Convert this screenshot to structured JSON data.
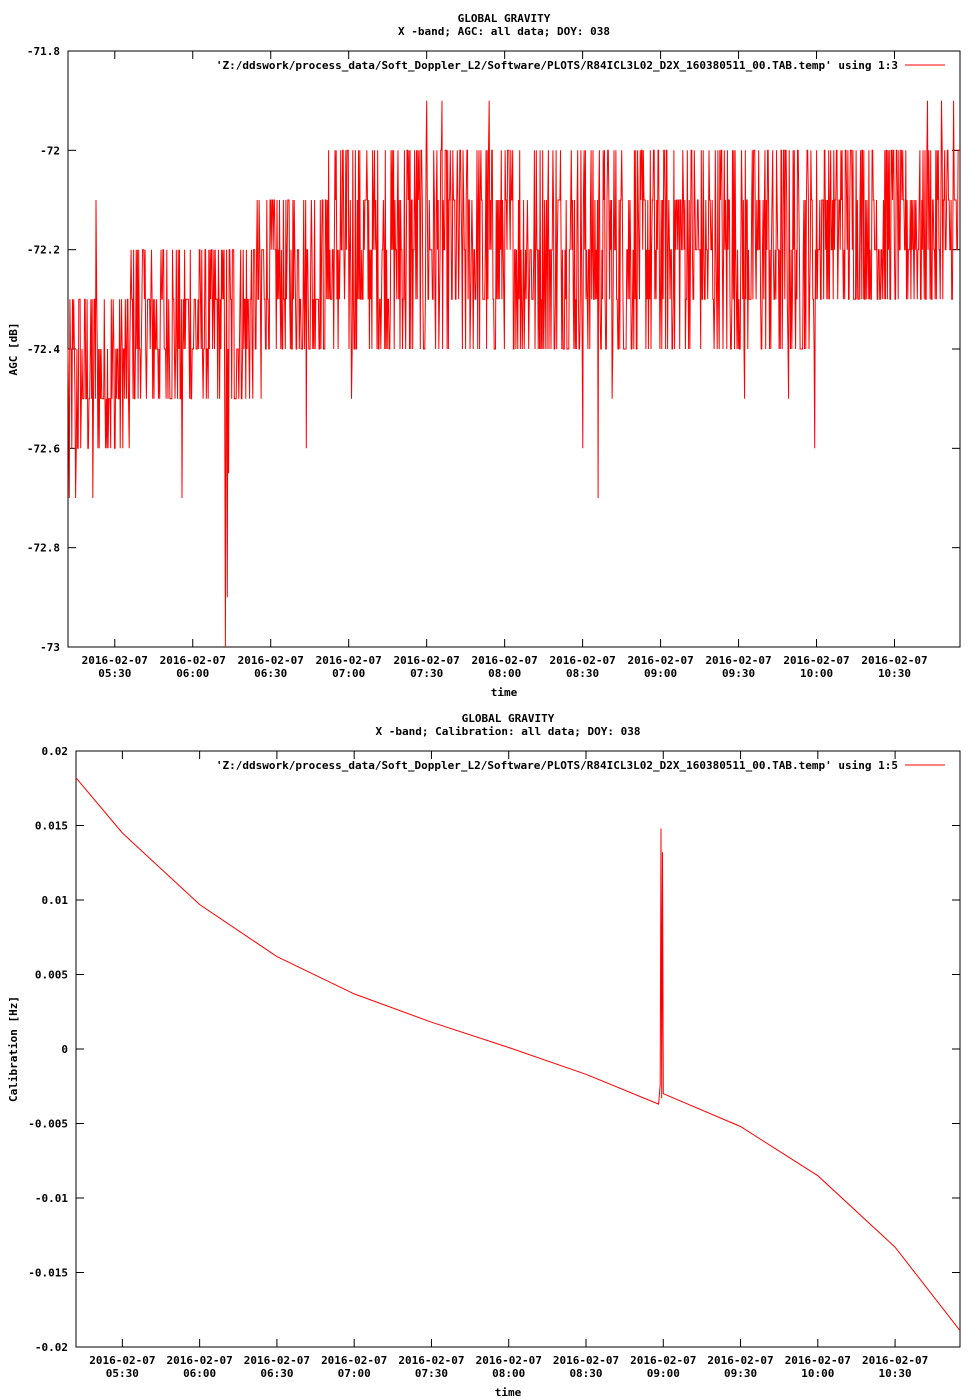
{
  "chart_data": [
    {
      "type": "line",
      "title": "GLOBAL GRAVITY",
      "subtitle": "X -band; AGC: all data; DOY: 038",
      "xlabel": "time",
      "ylabel": "AGC [dB]",
      "legend": "'Z:/ddswork/process_data/Soft_Doppler_L2/Software/PLOTS/R84ICL3L02_D2X_160380511_00.TAB.temp' using 1:3",
      "legend_position": "top-right",
      "color": "#ff0000",
      "xlim_hours": [
        5.2,
        10.92
      ],
      "ylim": [
        -73,
        -71.8
      ],
      "yticks": [
        -71.8,
        -72,
        -72.2,
        -72.4,
        -72.6,
        -72.8,
        -73
      ],
      "ytick_labels": [
        "-71.8",
        "-72",
        "-72.2",
        "-72.4",
        "-72.6",
        "-72.8",
        "-73"
      ],
      "xticks_hours": [
        5.5,
        6.0,
        6.5,
        7.0,
        7.5,
        8.0,
        8.5,
        9.0,
        9.5,
        10.0,
        10.5
      ],
      "xtick_dates": [
        "2016-02-07",
        "2016-02-07",
        "2016-02-07",
        "2016-02-07",
        "2016-02-07",
        "2016-02-07",
        "2016-02-07",
        "2016-02-07",
        "2016-02-07",
        "2016-02-07",
        "2016-02-07"
      ],
      "xtick_times": [
        "05:30",
        "06:00",
        "06:30",
        "07:00",
        "07:30",
        "08:00",
        "08:30",
        "09:00",
        "09:30",
        "10:00",
        "10:30"
      ],
      "segments": [
        {
          "x": [
            5.2,
            5.6
          ],
          "min": -72.6,
          "max": -72.3
        },
        {
          "x": [
            5.6,
            6.4
          ],
          "min": -72.5,
          "max": -72.2
        },
        {
          "x": [
            6.4,
            6.9
          ],
          "min": -72.4,
          "max": -72.1
        },
        {
          "x": [
            6.9,
            10.0
          ],
          "min": -72.4,
          "max": -72.0
        },
        {
          "x": [
            10.0,
            10.92
          ],
          "min": -72.3,
          "max": -72.0
        }
      ],
      "spikes": [
        {
          "x": 5.21,
          "y": -72.7
        },
        {
          "x": 5.25,
          "y": -72.7
        },
        {
          "x": 5.36,
          "y": -72.7
        },
        {
          "x": 5.38,
          "y": -72.1
        },
        {
          "x": 5.33,
          "y": -72.6
        },
        {
          "x": 5.45,
          "y": -72.6
        },
        {
          "x": 5.93,
          "y": -72.7
        },
        {
          "x": 6.21,
          "y": -73.0
        },
        {
          "x": 6.22,
          "y": -72.9
        },
        {
          "x": 6.23,
          "y": -72.65
        },
        {
          "x": 5.5,
          "y": -72.6
        },
        {
          "x": 6.44,
          "y": -72.5
        },
        {
          "x": 6.73,
          "y": -72.6
        },
        {
          "x": 6.87,
          "y": -72.0
        },
        {
          "x": 7.02,
          "y": -72.5
        },
        {
          "x": 7.5,
          "y": -71.9
        },
        {
          "x": 7.6,
          "y": -71.9
        },
        {
          "x": 7.9,
          "y": -71.9
        },
        {
          "x": 8.5,
          "y": -72.6
        },
        {
          "x": 8.6,
          "y": -72.7
        },
        {
          "x": 8.69,
          "y": -72.5
        },
        {
          "x": 9.54,
          "y": -72.5
        },
        {
          "x": 9.82,
          "y": -72.5
        },
        {
          "x": 9.99,
          "y": -72.6
        },
        {
          "x": 10.71,
          "y": -71.9
        },
        {
          "x": 10.8,
          "y": -71.9
        },
        {
          "x": 10.88,
          "y": -71.9
        }
      ]
    },
    {
      "type": "line",
      "title": "GLOBAL GRAVITY",
      "subtitle": "X -band; Calibration: all data; DOY: 038",
      "xlabel": "time",
      "ylabel": "Calibration [Hz]",
      "legend": "'Z:/ddswork/process_data/Soft_Doppler_L2/Software/PLOTS/R84ICL3L02_D2X_160380511_00.TAB.temp' using 1:5",
      "legend_position": "top-right",
      "color": "#ff0000",
      "xlim_hours": [
        5.2,
        10.92
      ],
      "ylim": [
        -0.02,
        0.02
      ],
      "yticks": [
        0.02,
        0.015,
        0.01,
        0.005,
        0,
        -0.005,
        -0.01,
        -0.015,
        -0.02
      ],
      "ytick_labels": [
        "0.02",
        "0.015",
        "0.01",
        "0.005",
        "0",
        "-0.005",
        "-0.01",
        "-0.015",
        "-0.02"
      ],
      "xticks_hours": [
        5.5,
        6.0,
        6.5,
        7.0,
        7.5,
        8.0,
        8.5,
        9.0,
        9.5,
        10.0,
        10.5
      ],
      "xtick_dates": [
        "2016-02-07",
        "2016-02-07",
        "2016-02-07",
        "2016-02-07",
        "2016-02-07",
        "2016-02-07",
        "2016-02-07",
        "2016-02-07",
        "2016-02-07",
        "2016-02-07",
        "2016-02-07"
      ],
      "xtick_times": [
        "05:30",
        "06:00",
        "06:30",
        "07:00",
        "07:30",
        "08:00",
        "08:30",
        "09:00",
        "09:30",
        "10:00",
        "10:30"
      ],
      "x": [
        5.2,
        5.5,
        6.0,
        6.5,
        7.0,
        7.5,
        8.0,
        8.5,
        8.97,
        8.98,
        8.985,
        8.99,
        8.995,
        9.0,
        9.5,
        10.0,
        10.5,
        10.92
      ],
      "y": [
        0.0182,
        0.0145,
        0.0097,
        0.0062,
        0.0037,
        0.0018,
        0.0001,
        -0.0017,
        -0.0037,
        -0.0024,
        0.0148,
        -0.0033,
        0.0132,
        -0.003,
        -0.0052,
        -0.0085,
        -0.0133,
        -0.0189
      ]
    }
  ]
}
